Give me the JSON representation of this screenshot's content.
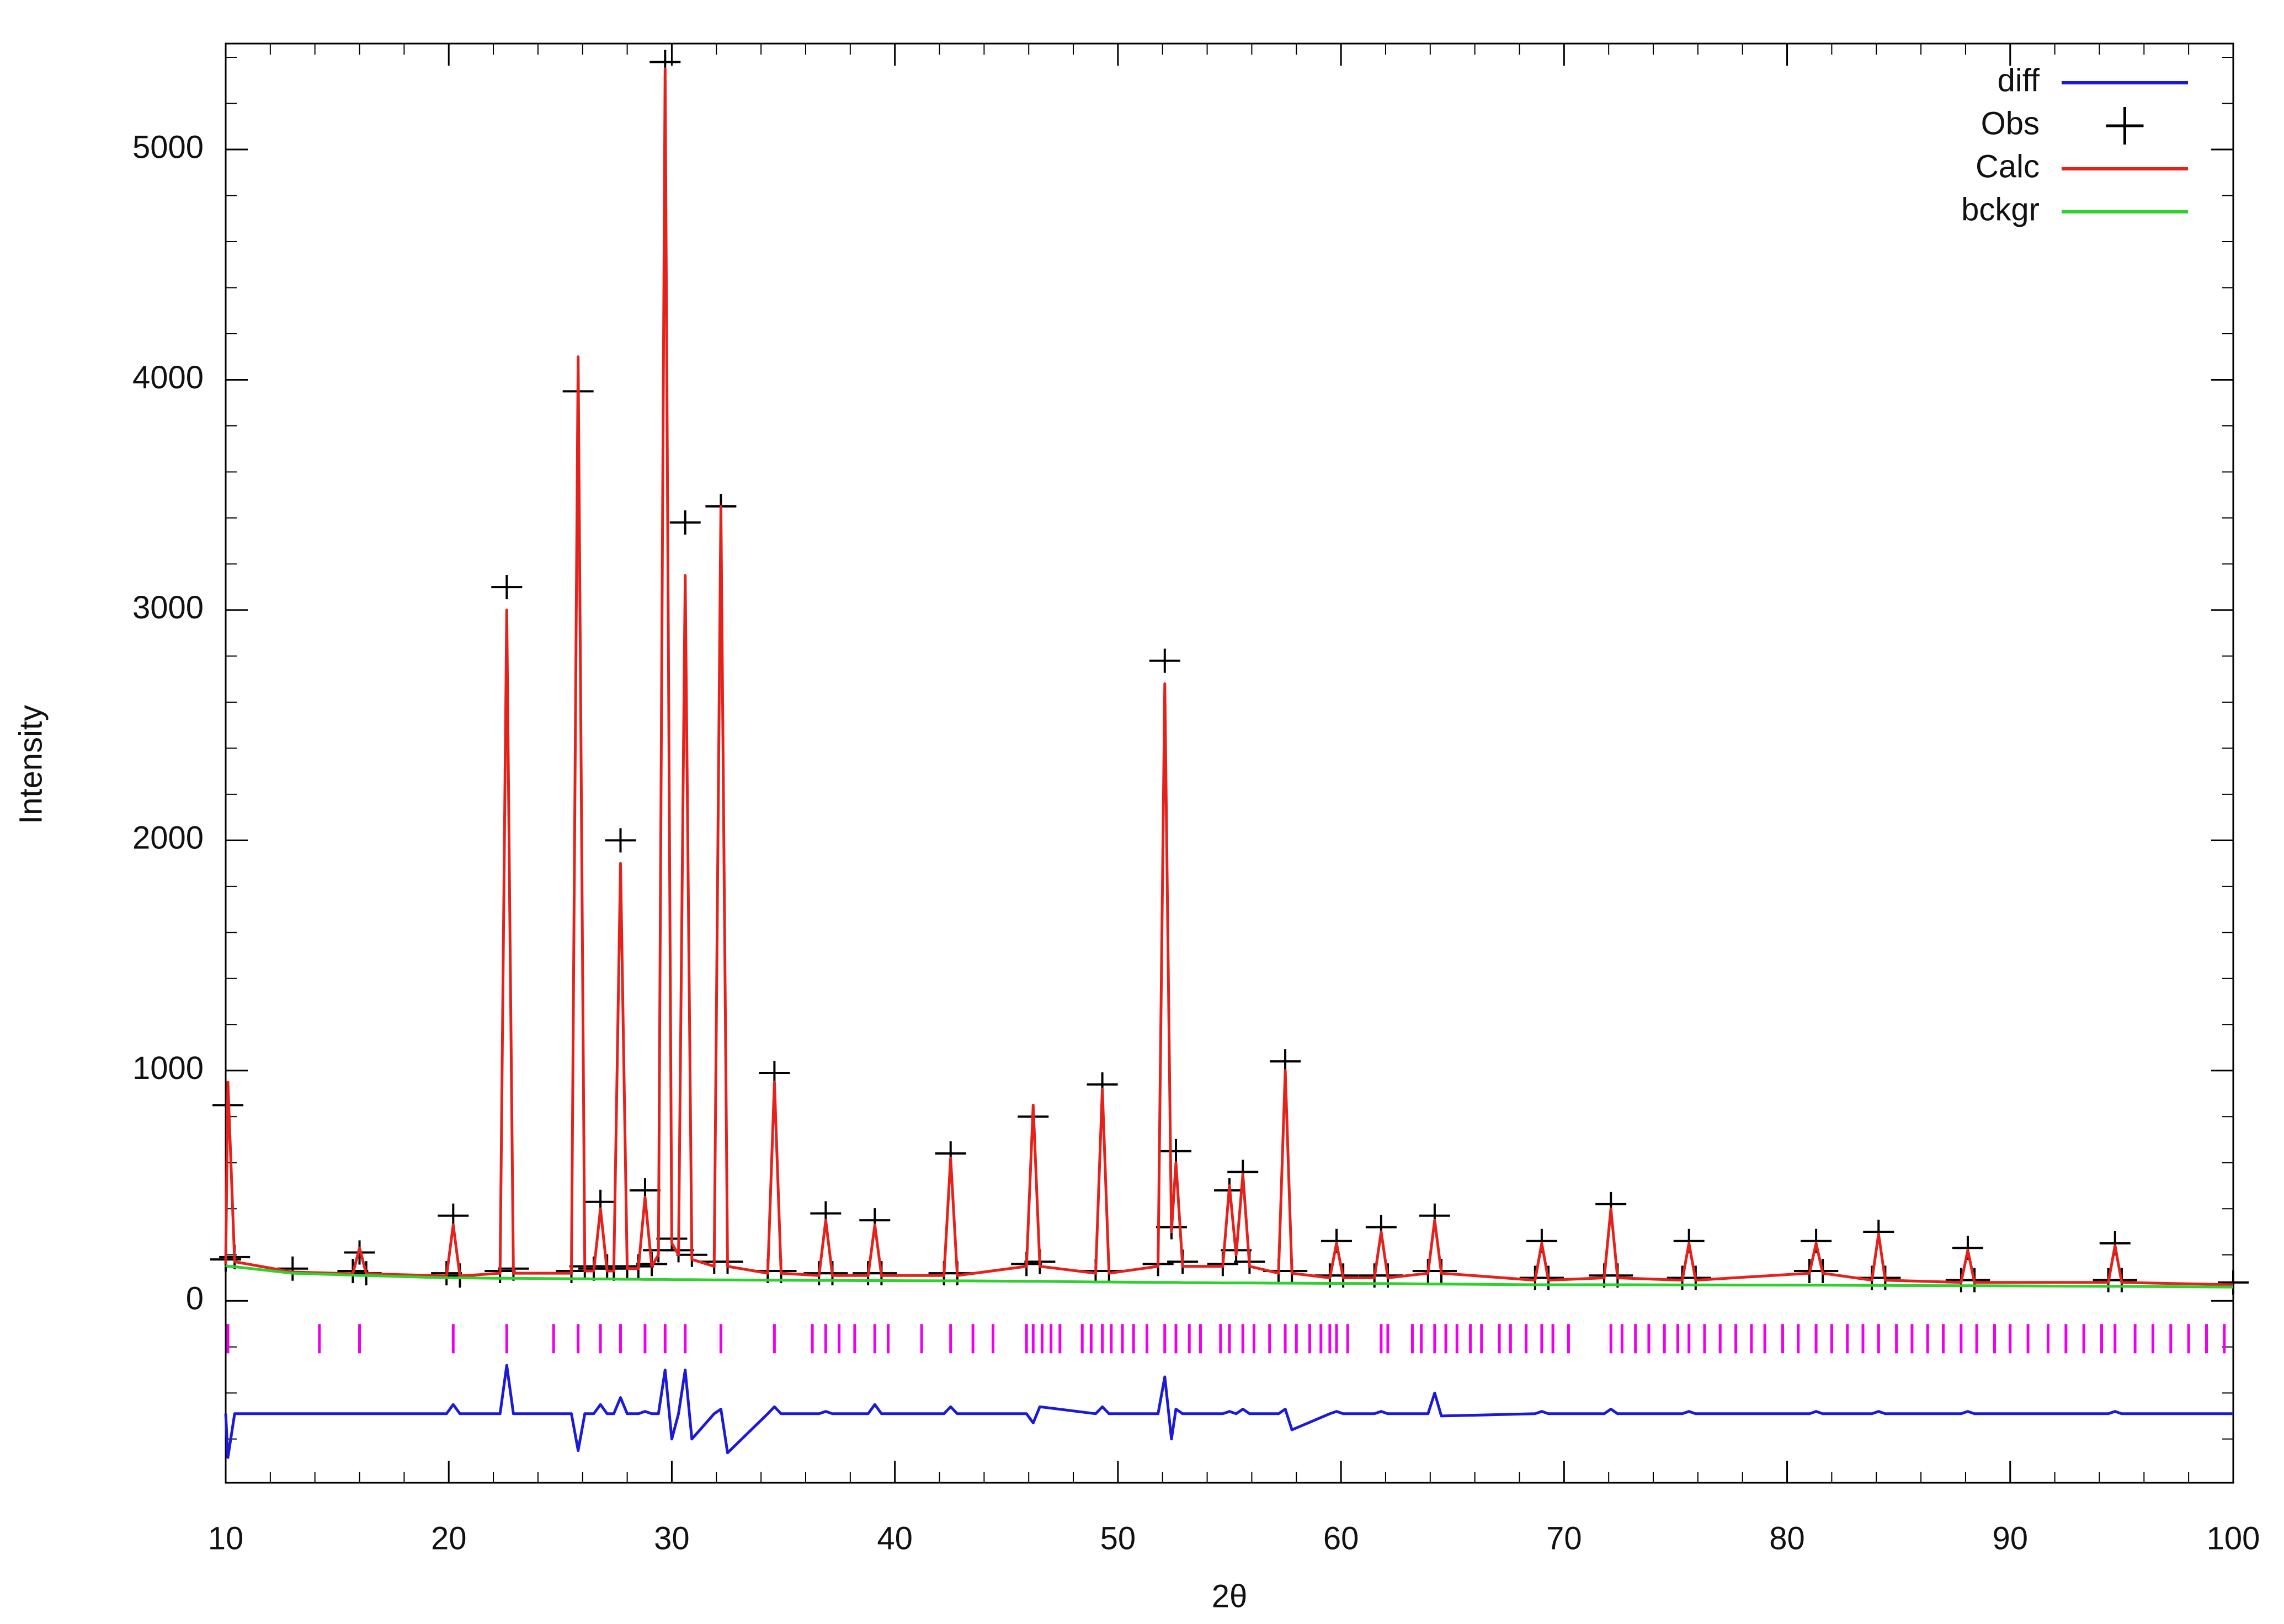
{
  "chart_data": {
    "type": "line",
    "x_label": "2θ",
    "y_label": "Intensity",
    "xlim": [
      10,
      100
    ],
    "ylim": [
      -790,
      5460
    ],
    "xticks": [
      10,
      20,
      30,
      40,
      50,
      60,
      70,
      80,
      90,
      100
    ],
    "yticks": [
      0,
      1000,
      2000,
      3000,
      4000,
      5000
    ],
    "grid": false,
    "legend": "upper right",
    "x": [
      10,
      10.1,
      10.4,
      13,
      15.7,
      16,
      16.3,
      19.9,
      20.2,
      20.5,
      22.3,
      22.6,
      22.9,
      25.5,
      25.8,
      26.1,
      26.5,
      26.8,
      27.1,
      27.4,
      27.7,
      28.0,
      28.5,
      28.8,
      29.1,
      29.4,
      29.7,
      30.0,
      30.3,
      30.6,
      30.9,
      31.9,
      32.2,
      32.5,
      34.3,
      34.6,
      34.9,
      36.6,
      36.9,
      37.2,
      38.8,
      39.1,
      39.4,
      42.2,
      42.5,
      42.8,
      45.9,
      46.2,
      46.5,
      49.0,
      49.3,
      49.6,
      51.8,
      52.1,
      52.4,
      52.6,
      52.9,
      54.7,
      55.0,
      55.3,
      55.6,
      55.9,
      57.2,
      57.5,
      57.8,
      59.5,
      59.8,
      60.1,
      61.5,
      61.8,
      62.1,
      63.9,
      64.2,
      64.5,
      68.7,
      69.0,
      69.3,
      71.8,
      72.1,
      72.4,
      75.3,
      75.6,
      75.9,
      81.0,
      81.3,
      81.6,
      83.8,
      84.1,
      84.4,
      87.8,
      88.1,
      88.4,
      94.4,
      94.7,
      95.0,
      100
    ],
    "series": [
      {
        "name": "diff",
        "color": "#1a1ad8",
        "style": "line",
        "values": [
          -490,
          -680,
          -490,
          -490,
          -490,
          -490,
          -490,
          -490,
          -450,
          -490,
          -490,
          -280,
          -490,
          -490,
          -650,
          -490,
          -490,
          -450,
          -490,
          -490,
          -420,
          -490,
          -490,
          -480,
          -490,
          -490,
          -300,
          -600,
          -490,
          -300,
          -600,
          -490,
          -470,
          -660,
          -490,
          -460,
          -490,
          -490,
          -480,
          -490,
          -490,
          -450,
          -490,
          -490,
          -460,
          -490,
          -490,
          -530,
          -460,
          -490,
          -460,
          -490,
          -490,
          -330,
          -600,
          -470,
          -490,
          -490,
          -480,
          -490,
          -470,
          -490,
          -490,
          -470,
          -560,
          -490,
          -480,
          -490,
          -490,
          -480,
          -490,
          -490,
          -400,
          -500,
          -490,
          -480,
          -490,
          -490,
          -470,
          -490,
          -490,
          -480,
          -490,
          -490,
          -480,
          -490,
          -490,
          -480,
          -490,
          -490,
          -480,
          -490,
          -490,
          -480,
          -490,
          -490
        ]
      },
      {
        "name": "Obs",
        "color": "#000000",
        "style": "cross",
        "values": [
          180,
          850,
          190,
          140,
          130,
          210,
          120,
          120,
          370,
          110,
          130,
          3100,
          140,
          130,
          3950,
          150,
          140,
          430,
          150,
          140,
          2000,
          150,
          150,
          480,
          160,
          220,
          5380,
          270,
          220,
          3380,
          200,
          170,
          3450,
          170,
          130,
          990,
          130,
          120,
          380,
          120,
          120,
          350,
          120,
          120,
          640,
          120,
          160,
          800,
          170,
          130,
          940,
          130,
          160,
          2780,
          320,
          650,
          170,
          160,
          480,
          220,
          560,
          170,
          130,
          1040,
          130,
          110,
          260,
          110,
          110,
          320,
          110,
          130,
          370,
          130,
          100,
          260,
          100,
          110,
          420,
          110,
          100,
          260,
          100,
          130,
          260,
          130,
          100,
          300,
          100,
          90,
          230,
          90,
          90,
          250,
          90,
          80
        ]
      },
      {
        "name": "Calc",
        "color": "#e4221b",
        "style": "line",
        "values": [
          160,
          950,
          170,
          125,
          118,
          230,
          118,
          108,
          330,
          108,
          120,
          3000,
          120,
          120,
          4100,
          130,
          130,
          400,
          130,
          130,
          1900,
          140,
          140,
          450,
          150,
          200,
          5350,
          250,
          200,
          3150,
          180,
          150,
          3450,
          150,
          120,
          950,
          120,
          110,
          350,
          110,
          110,
          330,
          110,
          110,
          620,
          110,
          150,
          850,
          150,
          120,
          920,
          120,
          150,
          2680,
          300,
          600,
          150,
          150,
          500,
          200,
          550,
          150,
          120,
          1000,
          120,
          100,
          250,
          100,
          100,
          300,
          100,
          120,
          350,
          120,
          90,
          250,
          90,
          100,
          400,
          100,
          90,
          250,
          90,
          120,
          250,
          120,
          90,
          290,
          90,
          80,
          220,
          80,
          80,
          240,
          80,
          70
        ]
      },
      {
        "name": "bckgr",
        "color": "#2ed12e",
        "style": "line",
        "values": [
          155,
          150,
          148,
          120,
          112,
          110,
          110,
          100,
          100,
          100,
          98,
          98,
          98,
          96,
          96,
          96,
          95,
          95,
          95,
          95,
          94,
          94,
          94,
          93,
          93,
          93,
          93,
          92,
          92,
          92,
          92,
          91,
          91,
          91,
          90,
          90,
          90,
          89,
          89,
          89,
          88,
          88,
          88,
          87,
          87,
          87,
          85,
          85,
          85,
          82,
          82,
          82,
          80,
          80,
          80,
          80,
          79,
          78,
          78,
          78,
          78,
          78,
          77,
          77,
          77,
          76,
          76,
          76,
          75,
          75,
          75,
          73,
          73,
          73,
          70,
          70,
          70,
          70,
          70,
          70,
          69,
          69,
          69,
          68,
          68,
          68,
          67,
          67,
          67,
          66,
          66,
          66,
          63,
          63,
          63,
          60
        ]
      }
    ],
    "reflections_color": "#ee00ee",
    "reflections": [
      10.1,
      14.2,
      16,
      20.2,
      22.6,
      24.7,
      25.8,
      26.8,
      27.7,
      28.8,
      29.7,
      30.6,
      32.2,
      34.6,
      36.3,
      36.9,
      37.5,
      38.2,
      39.1,
      39.7,
      41.2,
      42.5,
      43.5,
      44.4,
      45.9,
      46.2,
      46.6,
      47.0,
      47.4,
      48.4,
      48.8,
      49.3,
      49.7,
      50.2,
      50.7,
      51.3,
      52.1,
      52.6,
      53.2,
      53.7,
      54.6,
      55.0,
      55.6,
      56.1,
      56.8,
      57.5,
      58.0,
      58.6,
      59.1,
      59.5,
      59.8,
      60.3,
      61.8,
      62.1,
      63.2,
      63.6,
      64.2,
      64.7,
      65.2,
      65.8,
      66.3,
      67.1,
      67.6,
      68.3,
      69.0,
      69.5,
      70.2,
      72.1,
      72.6,
      73.2,
      73.8,
      74.5,
      75.1,
      75.6,
      76.3,
      77.0,
      77.7,
      78.4,
      79.0,
      79.8,
      80.5,
      81.3,
      82.0,
      82.7,
      83.4,
      84.1,
      84.9,
      85.6,
      86.3,
      87.0,
      87.8,
      88.5,
      89.3,
      90.0,
      90.8,
      91.7,
      92.5,
      93.3,
      94.1,
      94.7,
      95.6,
      96.4,
      97.2,
      98.0,
      98.8,
      99.6
    ]
  }
}
